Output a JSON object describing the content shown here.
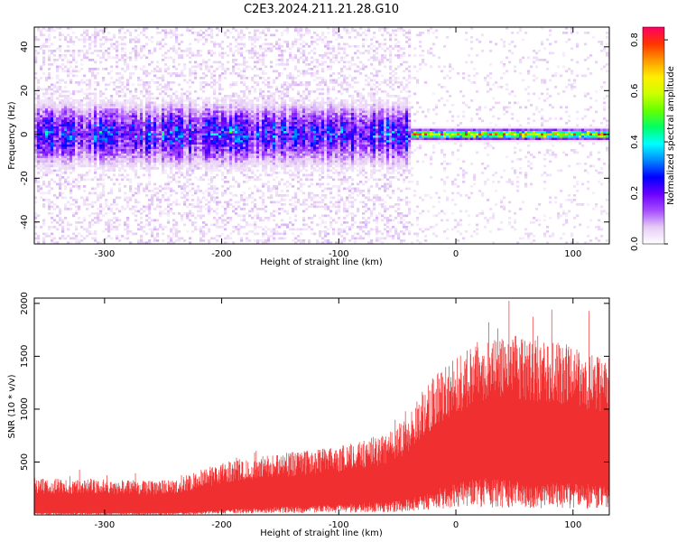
{
  "figure": {
    "title": "C2E3.2024.211.21.28.G10"
  },
  "chart_data": [
    {
      "type": "heatmap",
      "xlabel": "Height of straight line (km)",
      "ylabel": "Frequency (Hz)",
      "xlim": [
        -360,
        131
      ],
      "ylim": [
        -50,
        49
      ],
      "xticks": [
        -300,
        -200,
        -100,
        0,
        100
      ],
      "yticks": [
        -40,
        -20,
        0,
        20,
        40
      ],
      "colorbar": {
        "label": "Normalized spectral amplitude",
        "range": [
          0,
          0.85
        ],
        "ticks": [
          "0.0",
          "0.2",
          "0.4",
          "0.6",
          "0.8"
        ],
        "tick_values": [
          0,
          0.2,
          0.4,
          0.6,
          0.8
        ],
        "colormap": [
          "#ffffff",
          "#e6ccf5",
          "#a64dff",
          "#6a00ff",
          "#0000ff",
          "#0088ff",
          "#00ffff",
          "#00ff66",
          "#66ff00",
          "#ccff00",
          "#ffee00",
          "#ff9900",
          "#ff3300",
          "#ff0066"
        ]
      },
      "grid": false,
      "features": [
        {
          "x_range": [
            -360,
            -40
          ],
          "freq_center": 0,
          "band_halfwidth_hz": 8,
          "peak_amplitude": 0.3
        },
        {
          "x_range": [
            -40,
            131
          ],
          "freq_center": 0,
          "band_halfwidth_hz": 2,
          "peak_amplitude": 0.85
        }
      ]
    },
    {
      "type": "line",
      "xlabel": "Height of straight line (km)",
      "ylabel": "SNR (10 * v/v)",
      "xlim": [
        -360,
        131
      ],
      "ylim": [
        0,
        2050
      ],
      "xticks": [
        -300,
        -200,
        -100,
        0,
        100
      ],
      "yticks": [
        500,
        1000,
        1500,
        2000
      ],
      "grid": false,
      "series": [
        {
          "color": "#f03030",
          "envelope": {
            "x": [
              -360,
              -320,
              -280,
              -240,
              -220,
              -200,
              -160,
              -120,
              -100,
              -80,
              -60,
              -40,
              -30,
              -20,
              -10,
              0,
              20,
              40,
              60,
              80,
              100,
              120,
              131
            ],
            "low": [
              20,
              20,
              20,
              20,
              30,
              50,
              70,
              90,
              100,
              110,
              120,
              150,
              180,
              220,
              270,
              300,
              350,
              330,
              310,
              300,
              300,
              290,
              280
            ],
            "high": [
              350,
              340,
              330,
              330,
              420,
              500,
              570,
              620,
              650,
              700,
              780,
              950,
              1150,
              1300,
              1400,
              1480,
              1650,
              1700,
              1700,
              1650,
              1600,
              1520,
              1480
            ]
          }
        }
      ]
    }
  ]
}
